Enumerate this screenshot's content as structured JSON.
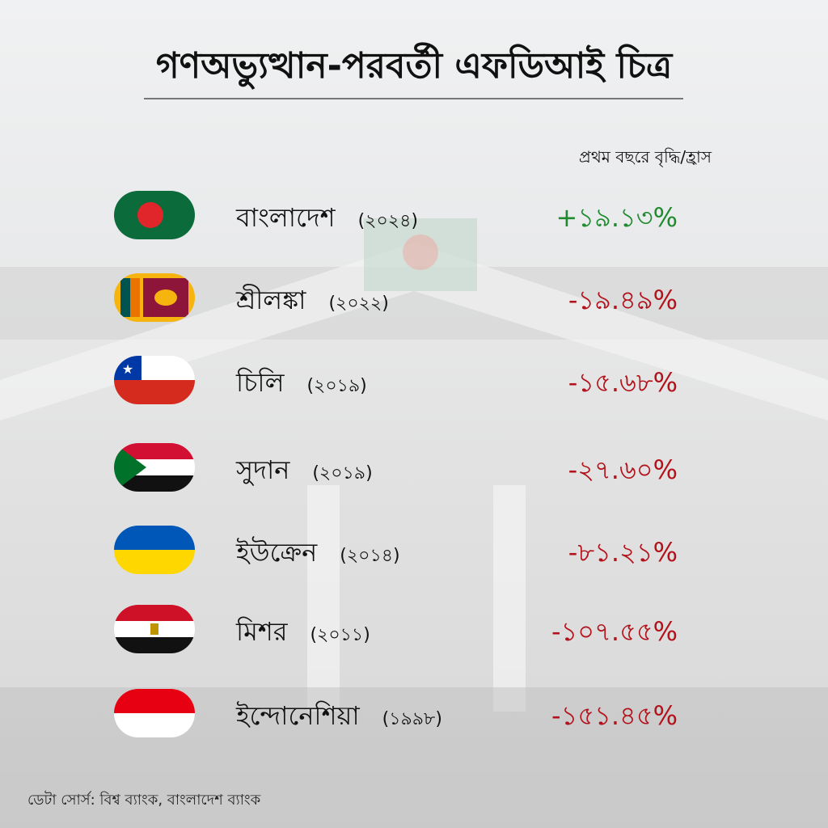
{
  "title": "গণঅভ্যুত্থান-পরবর্তী এফডিআই চিত্র",
  "column_header": "প্রথম বছরে বৃদ্ধি/হ্রাস",
  "source": "ডেটা সোর্স: বিশ্ব ব্যাংক, বাংলাদেশ ব্যাংক",
  "colors": {
    "positive": "#1f8a2e",
    "negative": "#b3121b"
  },
  "chart_data": {
    "type": "table",
    "title": "গণঅভ্যুত্থান-পরবর্তী এফডিআই চিত্র",
    "value_label": "প্রথম বছরে বৃদ্ধি/হ্রাস",
    "rows": [
      {
        "country": "বাংলাদেশ",
        "year": "(২০২৪)",
        "change": "+১৯.১৩%",
        "value": 19.13,
        "flag": "bangladesh-flag"
      },
      {
        "country": "শ্রীলঙ্কা",
        "year": "(২০২২)",
        "change": "-১৯.৪৯%",
        "value": -19.49,
        "flag": "sri-lanka-flag"
      },
      {
        "country": "চিলি",
        "year": "(২০১৯)",
        "change": "-১৫.৬৮%",
        "value": -15.68,
        "flag": "chile-flag"
      },
      {
        "country": "সুদান",
        "year": "(২০১৯)",
        "change": "-২৭.৬০%",
        "value": -27.6,
        "flag": "sudan-flag"
      },
      {
        "country": "ইউক্রেন",
        "year": "(২০১৪)",
        "change": "-৮১.২১%",
        "value": -81.21,
        "flag": "ukraine-flag"
      },
      {
        "country": "মিশর",
        "year": "(২০১১)",
        "change": "-১০৭.৫৫%",
        "value": -107.55,
        "flag": "egypt-flag"
      },
      {
        "country": "ইন্দোনেশিয়া",
        "year": "(১৯৯৮)",
        "change": "-১৫১.৪৫%",
        "value": -151.45,
        "flag": "indonesia-flag"
      }
    ]
  }
}
